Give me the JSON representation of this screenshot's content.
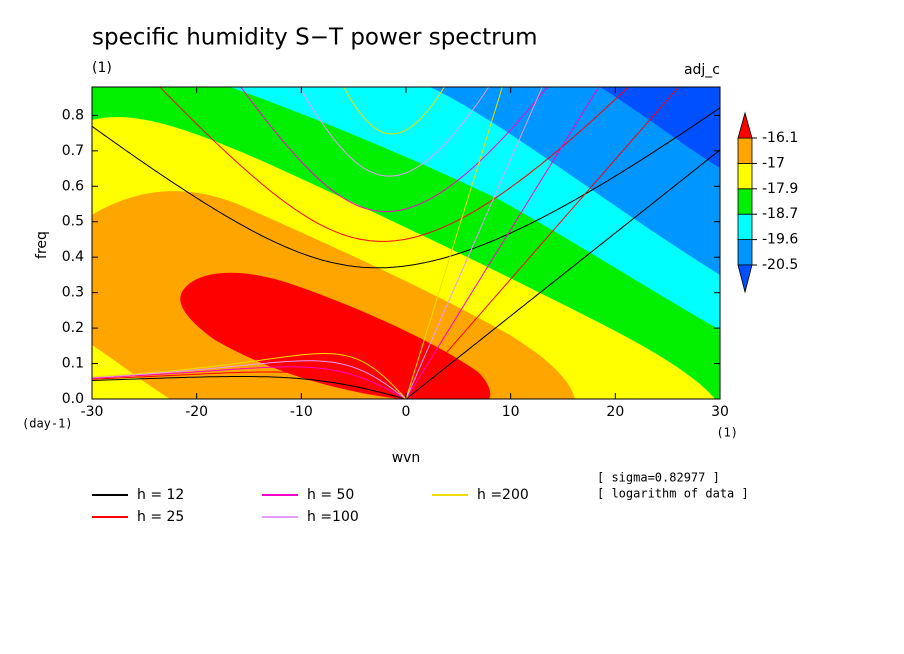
{
  "chart_data": {
    "type": "contour",
    "title": "specific humidity S−T power spectrum",
    "subtitle": "(1)",
    "corner_label": "adj_c",
    "x_label": "wvn",
    "y_label": "freq",
    "x_unit": "(1)",
    "y_unit": "(day-1)",
    "xlim": [
      -30,
      30
    ],
    "xticks": [
      -30,
      -20,
      -10,
      0,
      10,
      20,
      30
    ],
    "ylim": [
      0,
      0.88
    ],
    "yticks": [
      {
        "value": 0,
        "label": "0.0"
      },
      0.1,
      0.2,
      0.3,
      0.4,
      0.5,
      0.6,
      0.7,
      0.8
    ],
    "colorbar": {
      "levels": [
        -20.5,
        -19.6,
        -18.7,
        -17.9,
        -17,
        -16.1
      ],
      "colors": [
        "#0050ff",
        "#0096ff",
        "#00ffff",
        "#00f000",
        "#ffff00",
        "#ffa500",
        "#ff0000"
      ]
    },
    "annotations": [
      "[ sigma=0.82977 ]",
      "[ logarithm of data ]"
    ],
    "series": [
      {
        "name": "h = 12",
        "h": 12,
        "color": "#000000"
      },
      {
        "name": "h = 25",
        "h": 25,
        "color": "#ff0000"
      },
      {
        "name": "h = 50",
        "h": 50,
        "color": "#ff00c8"
      },
      {
        "name": "h =100",
        "h": 100,
        "color": "#e69bff"
      },
      {
        "name": "h =200",
        "h": 200,
        "color": "#f0dc00"
      }
    ]
  }
}
